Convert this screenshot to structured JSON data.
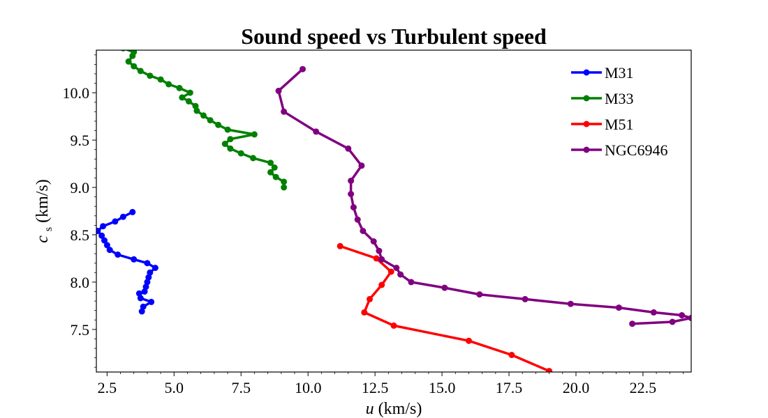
{
  "chart_data": {
    "type": "line",
    "title": "Sound speed vs Turbulent speed",
    "xlabel": "u (km/s)",
    "ylabel": "c_s (km/s)",
    "xlim": [
      2.1,
      24.3
    ],
    "ylim": [
      7.05,
      10.45
    ],
    "xticks": [
      "2.5",
      "5.0",
      "7.5",
      "10.0",
      "12.5",
      "15.0",
      "17.5",
      "20.0",
      "22.5"
    ],
    "yticks": [
      "7.5",
      "8.0",
      "8.5",
      "9.0",
      "9.5",
      "10.0"
    ],
    "grid": false,
    "legend_position": "top-right",
    "series": [
      {
        "name": "M31",
        "color": "#0000ff",
        "points": [
          [
            3.45,
            8.74
          ],
          [
            3.1,
            8.69
          ],
          [
            2.8,
            8.64
          ],
          [
            2.35,
            8.59
          ],
          [
            2.15,
            8.54
          ],
          [
            2.3,
            8.49
          ],
          [
            2.4,
            8.44
          ],
          [
            2.5,
            8.39
          ],
          [
            2.6,
            8.34
          ],
          [
            2.9,
            8.29
          ],
          [
            3.5,
            8.24
          ],
          [
            4.0,
            8.2
          ],
          [
            4.3,
            8.15
          ],
          [
            4.1,
            8.1
          ],
          [
            4.05,
            8.05
          ],
          [
            4.0,
            8.0
          ],
          [
            3.95,
            7.95
          ],
          [
            3.9,
            7.9
          ],
          [
            3.7,
            7.88
          ],
          [
            3.75,
            7.83
          ],
          [
            4.15,
            7.79
          ],
          [
            3.85,
            7.74
          ],
          [
            3.8,
            7.69
          ]
        ]
      },
      {
        "name": "M33",
        "color": "#008000",
        "points": [
          [
            3.1,
            10.47
          ],
          [
            3.5,
            10.43
          ],
          [
            3.45,
            10.39
          ],
          [
            3.3,
            10.33
          ],
          [
            3.5,
            10.28
          ],
          [
            3.75,
            10.23
          ],
          [
            4.1,
            10.18
          ],
          [
            4.5,
            10.14
          ],
          [
            4.8,
            10.09
          ],
          [
            5.2,
            10.05
          ],
          [
            5.6,
            10.0
          ],
          [
            5.3,
            9.95
          ],
          [
            5.55,
            9.91
          ],
          [
            5.8,
            9.86
          ],
          [
            5.85,
            9.81
          ],
          [
            6.1,
            9.76
          ],
          [
            6.35,
            9.71
          ],
          [
            6.65,
            9.66
          ],
          [
            7.0,
            9.61
          ],
          [
            8.0,
            9.56
          ],
          [
            7.1,
            9.51
          ],
          [
            6.9,
            9.46
          ],
          [
            7.1,
            9.41
          ],
          [
            7.5,
            9.36
          ],
          [
            7.95,
            9.31
          ],
          [
            8.6,
            9.26
          ],
          [
            8.75,
            9.21
          ],
          [
            8.6,
            9.16
          ],
          [
            8.8,
            9.11
          ],
          [
            9.1,
            9.06
          ],
          [
            9.1,
            9.0
          ]
        ]
      },
      {
        "name": "M51",
        "color": "#ff0000",
        "points": [
          [
            11.2,
            8.38
          ],
          [
            12.55,
            8.25
          ],
          [
            13.1,
            8.11
          ],
          [
            12.75,
            7.97
          ],
          [
            12.3,
            7.82
          ],
          [
            12.1,
            7.68
          ],
          [
            13.2,
            7.54
          ],
          [
            16.0,
            7.38
          ],
          [
            17.6,
            7.23
          ],
          [
            19.0,
            7.06
          ]
        ]
      },
      {
        "name": "NGC6946",
        "color": "#800080",
        "points": [
          [
            9.8,
            10.25
          ],
          [
            8.9,
            10.02
          ],
          [
            9.1,
            9.8
          ],
          [
            10.3,
            9.59
          ],
          [
            11.5,
            9.41
          ],
          [
            12.0,
            9.23
          ],
          [
            11.6,
            9.07
          ],
          [
            11.6,
            8.93
          ],
          [
            11.7,
            8.79
          ],
          [
            11.85,
            8.66
          ],
          [
            12.05,
            8.54
          ],
          [
            12.45,
            8.43
          ],
          [
            12.65,
            8.33
          ],
          [
            12.75,
            8.24
          ],
          [
            13.3,
            8.15
          ],
          [
            13.45,
            8.08
          ],
          [
            13.85,
            8.0
          ],
          [
            15.1,
            7.94
          ],
          [
            16.4,
            7.87
          ],
          [
            18.1,
            7.82
          ],
          [
            19.8,
            7.77
          ],
          [
            21.6,
            7.73
          ],
          [
            22.9,
            7.68
          ],
          [
            23.95,
            7.65
          ],
          [
            24.3,
            7.62
          ],
          [
            23.6,
            7.58
          ],
          [
            22.1,
            7.56
          ]
        ]
      }
    ]
  }
}
